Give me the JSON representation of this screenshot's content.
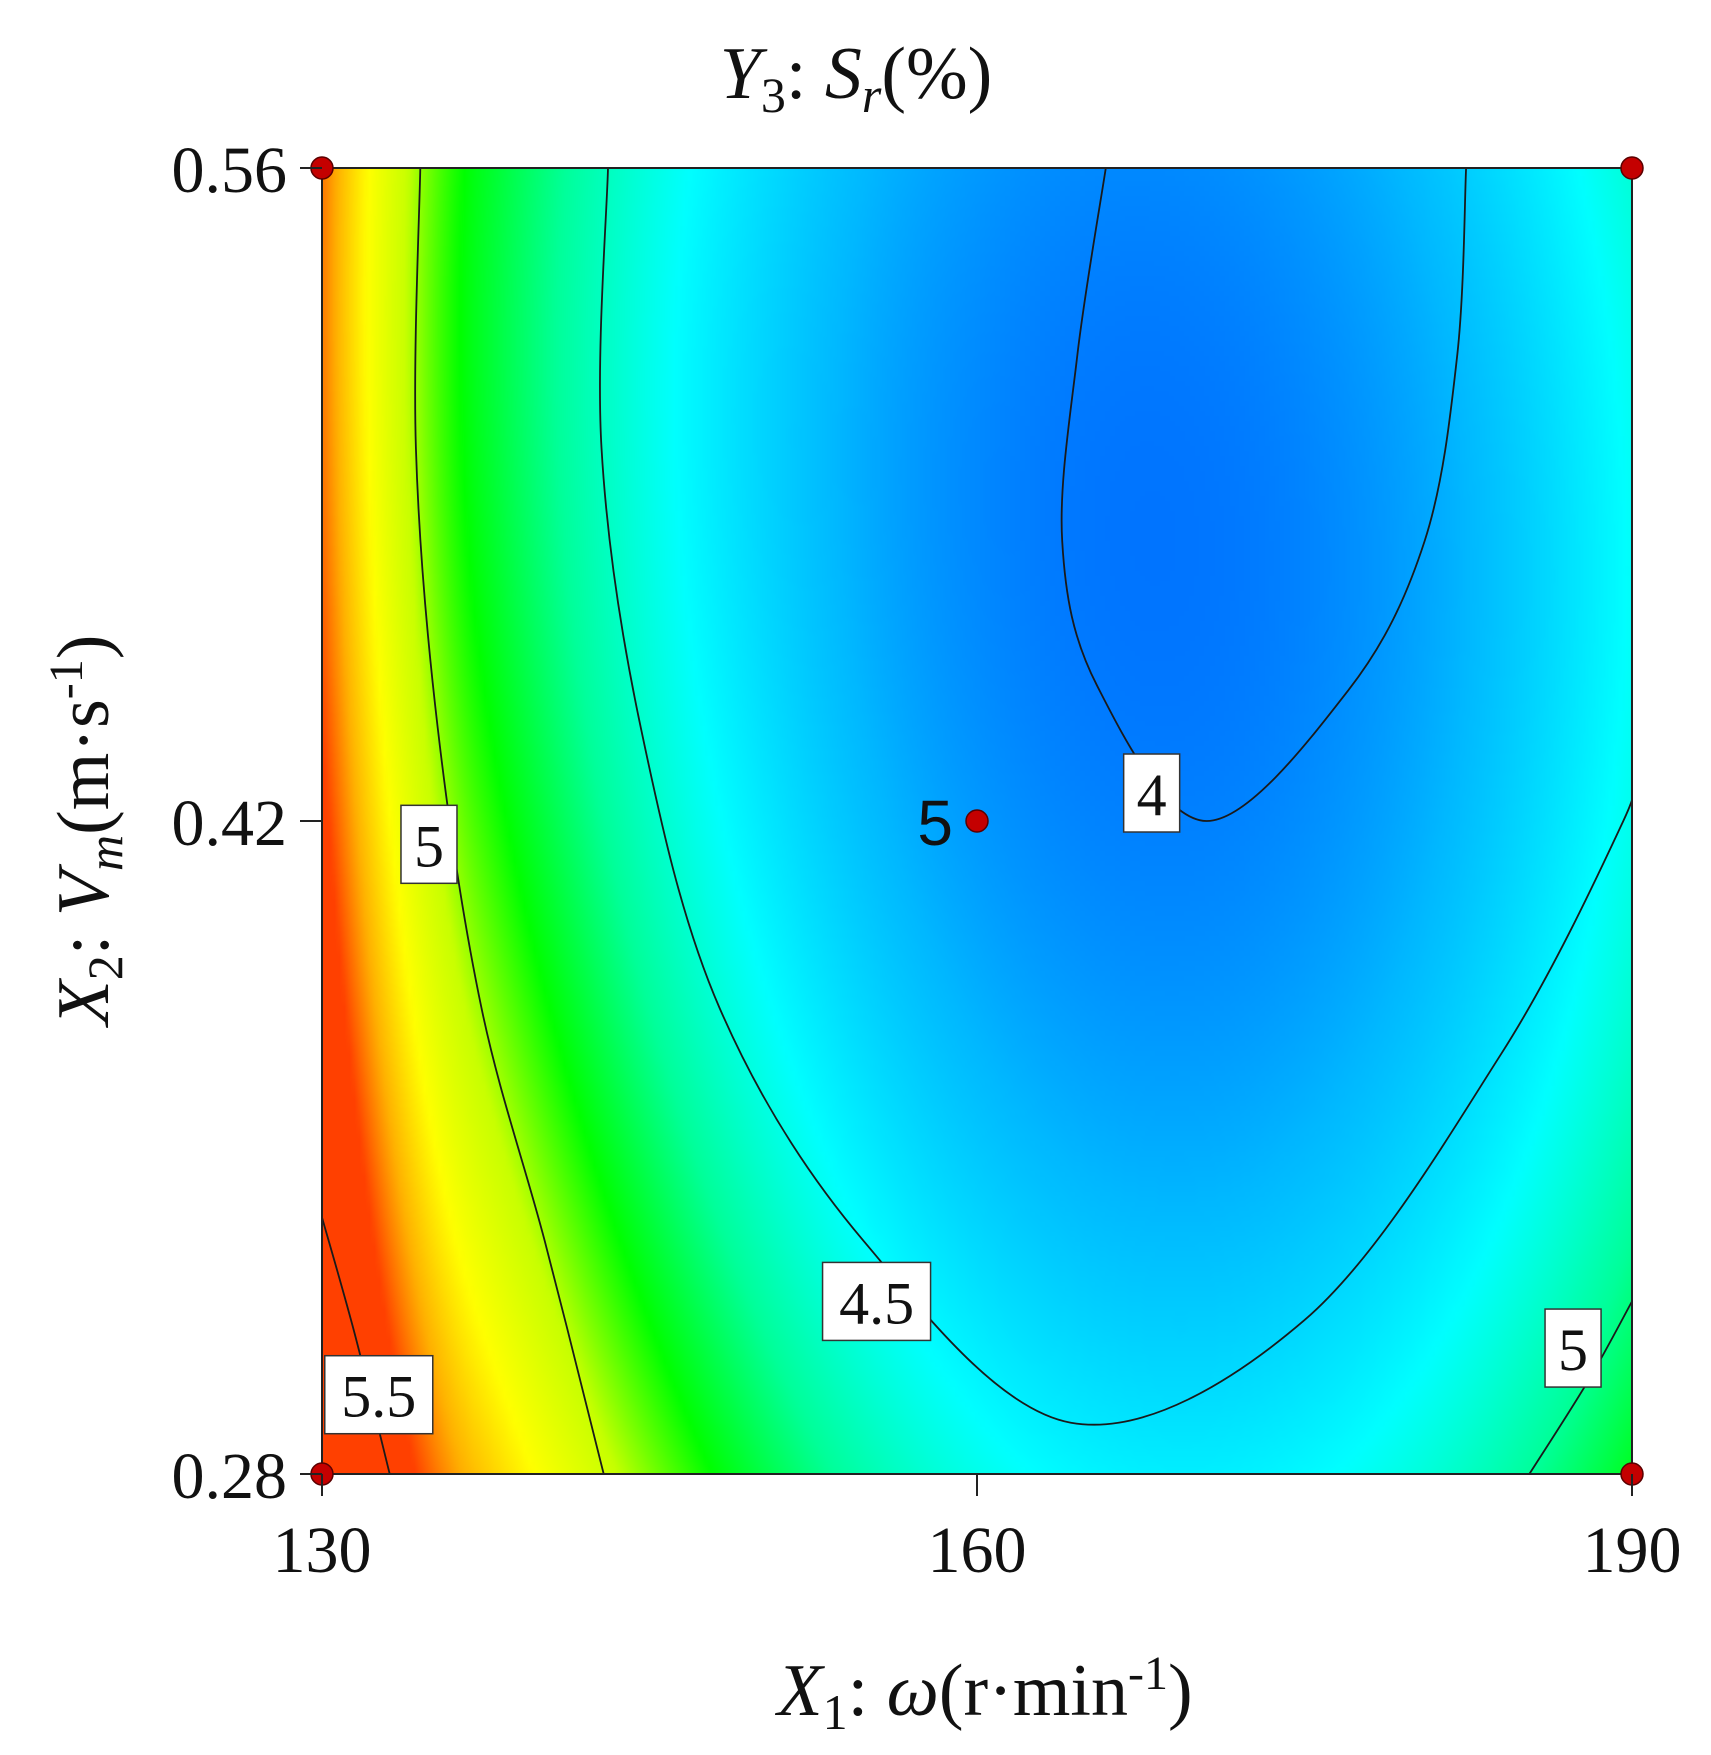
{
  "chart_data": {
    "type": "contour",
    "title": {
      "var": "Y",
      "sub": "3",
      "sep": ": ",
      "sym": "S",
      "symsub": "r",
      "unit": "(%)"
    },
    "xlabel": {
      "var": "X",
      "sub": "1",
      "sep": ": ",
      "sym": "ω",
      "unit": "(r·min",
      "sup": "-1",
      "close": ")"
    },
    "ylabel": {
      "var": "X",
      "sub": "2",
      "sep": ": ",
      "sym": "V",
      "symsub": "m",
      "unit": "(m·s",
      "sup": "-1",
      "close": ")"
    },
    "xlim": [
      130,
      190
    ],
    "ylim": [
      0.28,
      0.56
    ],
    "x_ticks": [
      {
        "value": 130,
        "label": "130"
      },
      {
        "value": 160,
        "label": "160"
      },
      {
        "value": 190,
        "label": "190"
      }
    ],
    "y_ticks": [
      {
        "value": 0.28,
        "label": "0.28"
      },
      {
        "value": 0.42,
        "label": "0.42"
      },
      {
        "value": 0.56,
        "label": "0.56"
      }
    ],
    "color_scale": [
      "#0063ff",
      "#00b8ff",
      "#00ffff",
      "#00ff99",
      "#00ff00",
      "#c8ff00",
      "#ffff00",
      "#ffb000",
      "#ff4000"
    ],
    "contour_lines": [
      {
        "level": "4",
        "points": [
          [
            165.9,
            0.56
          ],
          [
            164.6,
            0.52
          ],
          [
            163.9,
            0.48
          ],
          [
            165.5,
            0.449
          ],
          [
            170.5,
            0.42
          ],
          [
            177.0,
            0.448
          ],
          [
            180.5,
            0.48
          ],
          [
            182.0,
            0.52
          ],
          [
            182.4,
            0.56
          ]
        ]
      },
      {
        "level": "4.5",
        "points": [
          [
            143.1,
            0.56
          ],
          [
            142.8,
            0.5
          ],
          [
            144.6,
            0.44
          ],
          [
            148.2,
            0.38
          ],
          [
            154.8,
            0.33
          ],
          [
            164.3,
            0.291
          ],
          [
            175.0,
            0.313
          ],
          [
            184.0,
            0.37
          ],
          [
            189.6,
            0.42
          ],
          [
            190,
            0.43
          ]
        ]
      },
      {
        "level": "5",
        "points": [
          [
            134.5,
            0.56
          ],
          [
            134.3,
            0.5
          ],
          [
            135.3,
            0.44
          ],
          [
            137.3,
            0.38
          ],
          [
            140.2,
            0.33
          ],
          [
            142.9,
            0.28
          ]
        ]
      },
      {
        "level": "5",
        "points": [
          [
            185.3,
            0.28
          ],
          [
            188.0,
            0.3
          ],
          [
            190,
            0.317
          ]
        ]
      },
      {
        "level": "5.5",
        "points": [
          [
            130,
            0.335
          ],
          [
            131.5,
            0.31
          ],
          [
            133.1,
            0.28
          ]
        ]
      }
    ],
    "contour_labels": [
      {
        "text": "5",
        "x": 134.9,
        "y": 0.415
      },
      {
        "text": "4",
        "x": 168.0,
        "y": 0.426
      },
      {
        "text": "4.5",
        "x": 155.4,
        "y": 0.317
      },
      {
        "text": "5.5",
        "x": 132.6,
        "y": 0.297
      },
      {
        "text": "5",
        "x": 187.3,
        "y": 0.307
      }
    ],
    "design_points": [
      {
        "x": 130,
        "y": 0.56
      },
      {
        "x": 190,
        "y": 0.56
      },
      {
        "x": 130,
        "y": 0.28
      },
      {
        "x": 190,
        "y": 0.28
      },
      {
        "x": 160,
        "y": 0.42,
        "label": "5"
      }
    ]
  }
}
